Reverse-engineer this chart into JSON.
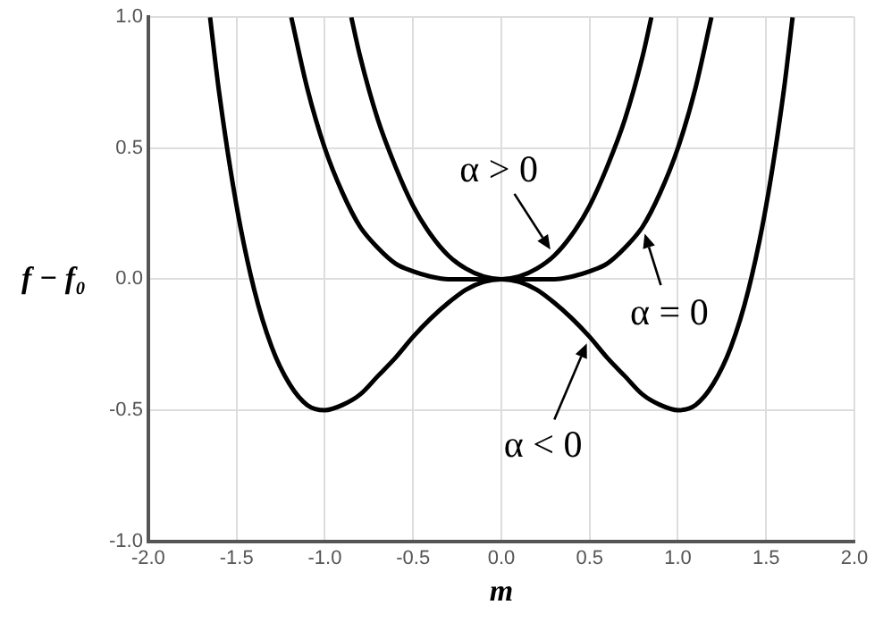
{
  "chart_data": {
    "type": "line",
    "xlabel": "m",
    "ylabel": "f − f₀",
    "xlim": [
      -2.0,
      2.0
    ],
    "ylim": [
      -1.0,
      1.0
    ],
    "xticks": [
      {
        "value": -2,
        "label": "-2.0"
      },
      {
        "value": -1.5,
        "label": "-1.5"
      },
      {
        "value": -1,
        "label": "-1.0"
      },
      {
        "value": -0.5,
        "label": "-0.5"
      },
      {
        "value": 0,
        "label": "0.0"
      },
      {
        "value": 0.5,
        "label": "0.5"
      },
      {
        "value": 1,
        "label": "1.0"
      },
      {
        "value": 1.5,
        "label": "1.5"
      },
      {
        "value": 2,
        "label": "2.0"
      }
    ],
    "yticks": [
      {
        "value": -1,
        "label": "-1.0"
      },
      {
        "value": -0.5,
        "label": "-0.5"
      },
      {
        "value": 0,
        "label": "0.0"
      },
      {
        "value": 0.5,
        "label": "0.5"
      },
      {
        "value": 1,
        "label": "1.0"
      }
    ],
    "series": [
      {
        "color": "#000000",
        "x": [
          -1.65,
          -1.6,
          -1.5,
          -1.4,
          -1.3,
          -1.2,
          -1.1,
          -1.0,
          -0.9,
          -0.8,
          -0.7,
          -0.6,
          -0.5,
          -0.4,
          -0.3,
          -0.2,
          -0.1,
          0,
          0.1,
          0.2,
          0.3,
          0.4,
          0.5,
          0.6,
          0.7,
          0.8,
          0.9,
          1.0,
          1.1,
          1.2,
          1.3,
          1.4,
          1.5,
          1.6,
          1.65
        ],
        "values": [
          1.0,
          0.72,
          0.28,
          -0.04,
          -0.26,
          -0.4,
          -0.48,
          -0.5,
          -0.48,
          -0.44,
          -0.37,
          -0.3,
          -0.22,
          -0.15,
          -0.09,
          -0.04,
          -0.01,
          0,
          -0.01,
          -0.04,
          -0.09,
          -0.15,
          -0.22,
          -0.3,
          -0.37,
          -0.44,
          -0.48,
          -0.5,
          -0.48,
          -0.4,
          -0.26,
          -0.04,
          0.28,
          0.72,
          1.0
        ]
      },
      {
        "color": "#000000",
        "x": [
          -1.19,
          -1.1,
          -1.0,
          -0.9,
          -0.8,
          -0.7,
          -0.6,
          -0.5,
          -0.4,
          -0.3,
          -0.2,
          0,
          0.2,
          0.3,
          0.4,
          0.5,
          0.6,
          0.7,
          0.8,
          0.9,
          1.0,
          1.1,
          1.19
        ],
        "values": [
          1.0,
          0.73,
          0.5,
          0.33,
          0.2,
          0.12,
          0.06,
          0.03,
          0.01,
          0,
          0,
          0,
          0,
          0,
          0.01,
          0.03,
          0.06,
          0.12,
          0.2,
          0.33,
          0.5,
          0.73,
          1.0
        ]
      },
      {
        "color": "#000000",
        "x": [
          -0.85,
          -0.8,
          -0.7,
          -0.6,
          -0.5,
          -0.4,
          -0.3,
          -0.2,
          -0.1,
          0,
          0.1,
          0.2,
          0.3,
          0.4,
          0.5,
          0.6,
          0.7,
          0.8,
          0.85
        ],
        "values": [
          1.0,
          0.85,
          0.61,
          0.43,
          0.28,
          0.17,
          0.09,
          0.04,
          0.01,
          0,
          0.01,
          0.04,
          0.09,
          0.17,
          0.28,
          0.43,
          0.61,
          0.85,
          1.0
        ]
      }
    ],
    "annotations": [
      {
        "text": "α > 0",
        "x": 0.3,
        "y": 0.09
      },
      {
        "text": "α = 0",
        "x": 0.8,
        "y": 0.2
      },
      {
        "text": "α < 0",
        "x": 0.5,
        "y": -0.22
      }
    ],
    "grid": true,
    "legend": false,
    "marker": "none",
    "line_style": "solid"
  }
}
